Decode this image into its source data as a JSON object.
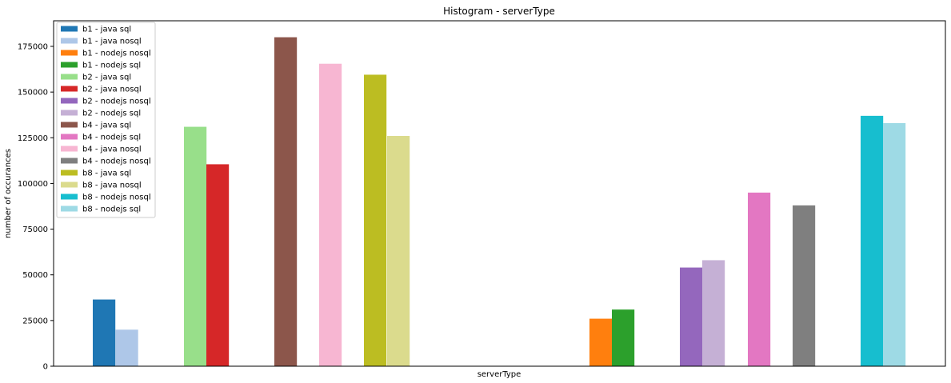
{
  "chart_data": {
    "type": "bar",
    "title": "Histogram - serverType",
    "xlabel": "serverType",
    "ylabel": "number of occurances",
    "ylim": [
      0,
      189000
    ],
    "yticks": [
      0,
      25000,
      50000,
      75000,
      100000,
      125000,
      150000,
      175000
    ],
    "ytick_labels": [
      "0",
      "25000",
      "50000",
      "75000",
      "100000",
      "125000",
      "150000",
      "175000"
    ],
    "grid": false,
    "legend_position": "top-left",
    "series": [
      {
        "name": "b1 - java sql",
        "value": 36500,
        "color": "#1f77b4"
      },
      {
        "name": "b1 - java nosql",
        "value": 20000,
        "color": "#aec7e8"
      },
      {
        "name": "b1 - nodejs nosql",
        "value": 26000,
        "color": "#ff7f0e"
      },
      {
        "name": "b1 - nodejs sql",
        "value": 31000,
        "color": "#2ca02c"
      },
      {
        "name": "b2 - java sql",
        "value": 131000,
        "color": "#98df8a"
      },
      {
        "name": "b2 - java nosql",
        "value": 110500,
        "color": "#d62728"
      },
      {
        "name": "b2 - nodejs nosql",
        "value": 54000,
        "color": "#9467bd"
      },
      {
        "name": "b2 - nodejs sql",
        "value": 58000,
        "color": "#c5b0d5"
      },
      {
        "name": "b4 - java sql",
        "value": 180000,
        "color": "#8c564b"
      },
      {
        "name": "b4 - nodejs sql",
        "value": 95000,
        "color": "#e377c2"
      },
      {
        "name": "b4 - java nosql",
        "value": 165500,
        "color": "#f7b6d2"
      },
      {
        "name": "b4 - nodejs nosql",
        "value": 88000,
        "color": "#7f7f7f"
      },
      {
        "name": "b8 - java sql",
        "value": 159500,
        "color": "#bcbd22"
      },
      {
        "name": "b8 - java nosql",
        "value": 126000,
        "color": "#dbdb8d"
      },
      {
        "name": "b8 - nodejs nosql",
        "value": 137000,
        "color": "#17becf"
      },
      {
        "name": "b8 - nodejs sql",
        "value": 133000,
        "color": "#9edae5"
      }
    ],
    "bar_order": [
      "b1 - java sql",
      "b1 - java nosql",
      "b2 - java sql",
      "b2 - java nosql",
      "b4 - java sql",
      "b4 - java nosql",
      "b8 - java sql",
      "b8 - java nosql",
      "b1 - nodejs nosql",
      "b1 - nodejs sql",
      "b2 - nodejs nosql",
      "b2 - nodejs sql",
      "b4 - nodejs sql",
      "b4 - nodejs nosql",
      "b8 - nodejs nosql",
      "b8 - nodejs sql"
    ]
  }
}
